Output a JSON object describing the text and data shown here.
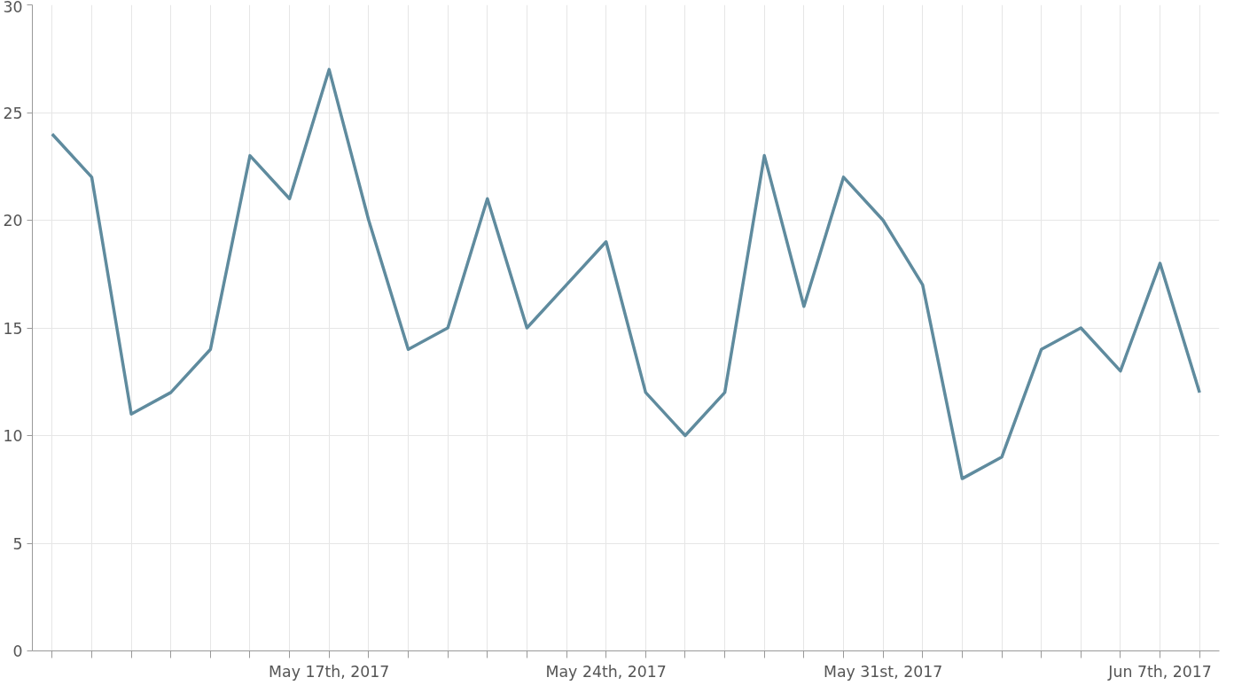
{
  "chart_data": {
    "type": "line",
    "x": [
      "2017-05-10",
      "2017-05-11",
      "2017-05-12",
      "2017-05-13",
      "2017-05-14",
      "2017-05-15",
      "2017-05-16",
      "2017-05-17",
      "2017-05-18",
      "2017-05-19",
      "2017-05-20",
      "2017-05-21",
      "2017-05-22",
      "2017-05-23",
      "2017-05-24",
      "2017-05-25",
      "2017-05-26",
      "2017-05-27",
      "2017-05-28",
      "2017-05-29",
      "2017-05-30",
      "2017-05-31",
      "2017-06-01",
      "2017-06-02",
      "2017-06-03",
      "2017-06-04",
      "2017-06-05",
      "2017-06-06",
      "2017-06-07",
      "2017-06-08"
    ],
    "series": [
      {
        "color": "#5f8b9e",
        "values": [
          24,
          22,
          11,
          12,
          14,
          23,
          21,
          27,
          20,
          14,
          15,
          21,
          15,
          17,
          19,
          12,
          10,
          12,
          23,
          16,
          22,
          20,
          17,
          8,
          9,
          14,
          15,
          13,
          18,
          12
        ]
      }
    ],
    "xlim": [
      "2017-05-09T12:00",
      "2017-06-08T12:00"
    ],
    "xticks": [
      {
        "value": "2017-05-10",
        "label": null
      },
      {
        "value": "2017-05-11",
        "label": null
      },
      {
        "value": "2017-05-12",
        "label": null
      },
      {
        "value": "2017-05-13",
        "label": null
      },
      {
        "value": "2017-05-14",
        "label": null
      },
      {
        "value": "2017-05-15",
        "label": null
      },
      {
        "value": "2017-05-16",
        "label": null
      },
      {
        "value": "2017-05-17",
        "label": "May 17th, 2017"
      },
      {
        "value": "2017-05-18",
        "label": null
      },
      {
        "value": "2017-05-19",
        "label": null
      },
      {
        "value": "2017-05-20",
        "label": null
      },
      {
        "value": "2017-05-21",
        "label": null
      },
      {
        "value": "2017-05-22",
        "label": null
      },
      {
        "value": "2017-05-23",
        "label": null
      },
      {
        "value": "2017-05-24",
        "label": "May 24th, 2017"
      },
      {
        "value": "2017-05-25",
        "label": null
      },
      {
        "value": "2017-05-26",
        "label": null
      },
      {
        "value": "2017-05-27",
        "label": null
      },
      {
        "value": "2017-05-28",
        "label": null
      },
      {
        "value": "2017-05-29",
        "label": null
      },
      {
        "value": "2017-05-30",
        "label": null
      },
      {
        "value": "2017-05-31",
        "label": "May 31st, 2017"
      },
      {
        "value": "2017-06-01",
        "label": null
      },
      {
        "value": "2017-06-02",
        "label": null
      },
      {
        "value": "2017-06-03",
        "label": null
      },
      {
        "value": "2017-06-04",
        "label": null
      },
      {
        "value": "2017-06-05",
        "label": null
      },
      {
        "value": "2017-06-06",
        "label": null
      },
      {
        "value": "2017-06-07",
        "label": "Jun 7th, 2017"
      },
      {
        "value": "2017-06-08",
        "label": null
      }
    ],
    "ylim": [
      0,
      30
    ],
    "yticks": [
      0,
      5,
      10,
      15,
      20,
      25,
      30
    ],
    "grid": true,
    "marker": "none",
    "line_style": "solid"
  }
}
